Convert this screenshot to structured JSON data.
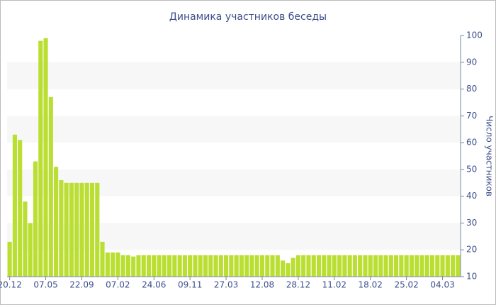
{
  "chart_data": {
    "type": "bar",
    "title": "Динамика участников беседы",
    "y_label": "Число участников",
    "categories": [
      "20.12",
      null,
      null,
      null,
      null,
      null,
      null,
      "07.05",
      null,
      null,
      null,
      null,
      null,
      null,
      "22.09",
      null,
      null,
      null,
      null,
      null,
      null,
      "07.02",
      null,
      null,
      null,
      null,
      null,
      null,
      "24.06",
      null,
      null,
      null,
      null,
      null,
      null,
      "09.11",
      null,
      null,
      null,
      null,
      null,
      null,
      "27.03",
      null,
      null,
      null,
      null,
      null,
      null,
      "12.08",
      null,
      null,
      null,
      null,
      null,
      null,
      "28.12",
      null,
      null,
      null,
      null,
      null,
      null,
      "11.02",
      null,
      null,
      null,
      null,
      null,
      null,
      "18.02",
      null,
      null,
      null,
      null,
      null,
      null,
      "25.02",
      null,
      null,
      null,
      null,
      null,
      null,
      "04.03",
      null,
      null,
      null
    ],
    "values": [
      23,
      63,
      61,
      38,
      30,
      53,
      98,
      99,
      77,
      51,
      46,
      45,
      45,
      45,
      45,
      45,
      45,
      45,
      23,
      19,
      19,
      19,
      18,
      18,
      17.5,
      18,
      18,
      18,
      18,
      18,
      18,
      18,
      18,
      18,
      18,
      18,
      18,
      18,
      18,
      18,
      18,
      18,
      18,
      18,
      18,
      18,
      18,
      18,
      18,
      18,
      18,
      18,
      18,
      16,
      15,
      17,
      18,
      18,
      18,
      18,
      18,
      18,
      18,
      18,
      18,
      18,
      18,
      18,
      18,
      18,
      18,
      18,
      18,
      18,
      18,
      18,
      18,
      18,
      18,
      18,
      18,
      18,
      18,
      18,
      18,
      18,
      18,
      18
    ],
    "color": "#bade32",
    "band_color": "#f7f7f7",
    "ylim": [
      10,
      100
    ],
    "yticks": [
      10,
      20,
      30,
      40,
      50,
      60,
      70,
      80,
      90,
      100
    ],
    "grid": true,
    "y_axis_side": "right"
  }
}
